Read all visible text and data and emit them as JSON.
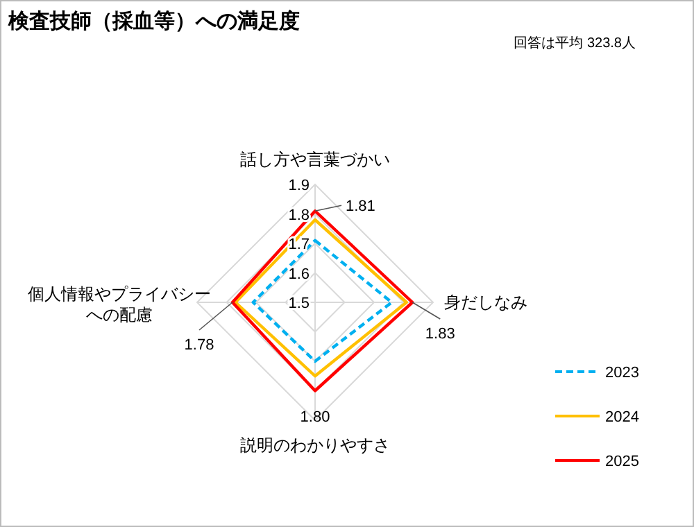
{
  "chart_data": {
    "type": "radar",
    "title": "検査技師（採血等）への満足度",
    "annotations": [
      "回答は平均 323.8人"
    ],
    "categories": [
      "話し方や言葉づかい",
      "身だしなみ",
      "説明のわかりやすさ",
      "個人情報やプライバシーへの配慮"
    ],
    "ylim": [
      1.5,
      1.9
    ],
    "yticks": [
      1.5,
      1.6,
      1.7,
      1.8,
      1.9
    ],
    "grid": true,
    "legend": "right",
    "marker": "none",
    "series": [
      {
        "name": "2023",
        "color": "#00b0f0",
        "line_style": "dashed",
        "values": [
          1.71,
          1.76,
          1.7,
          1.71
        ]
      },
      {
        "name": "2024",
        "color": "#ffc000",
        "line_style": "solid",
        "values": [
          1.78,
          1.81,
          1.75,
          1.77
        ]
      },
      {
        "name": "2025",
        "color": "#ff0000",
        "line_style": "solid",
        "values": [
          1.81,
          1.83,
          1.8,
          1.78
        ],
        "value_labels": [
          "1.81",
          "1.83",
          "1.80",
          "1.78"
        ]
      }
    ]
  }
}
